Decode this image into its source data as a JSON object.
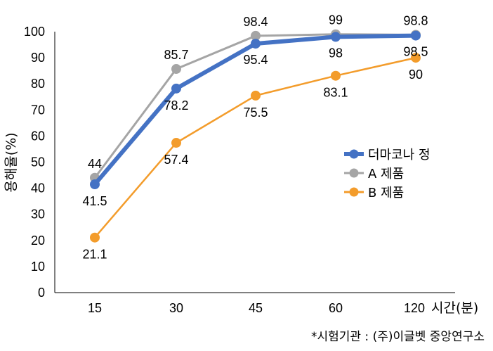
{
  "chart_data": {
    "type": "line",
    "x": [
      15,
      30,
      45,
      60,
      120
    ],
    "categories": [
      "15",
      "30",
      "45",
      "60",
      "120"
    ],
    "x_unit_label": "시간(분)",
    "ylabel": "용해율(%)",
    "ylim": [
      0,
      100
    ],
    "yticks": [
      0,
      10,
      20,
      30,
      40,
      50,
      60,
      70,
      80,
      90,
      100
    ],
    "grid": false,
    "legend_position": "right",
    "series": [
      {
        "name": "더마코나 정",
        "values": [
          41.5,
          78.2,
          95.4,
          98,
          98.5
        ],
        "color": "#4472c4",
        "labels": [
          "41.5",
          "78.2",
          "95.4",
          "98",
          "98.5"
        ],
        "label_pos": [
          "below",
          "below",
          "below",
          "below",
          "below"
        ]
      },
      {
        "name": "A 제품",
        "values": [
          44,
          85.7,
          98.4,
          99,
          98.8
        ],
        "color": "#a5a5a5",
        "labels": [
          "44",
          "85.7",
          "98.4",
          "99",
          "98.8"
        ],
        "label_pos": [
          "above",
          "above",
          "above",
          "above",
          "above"
        ]
      },
      {
        "name": "B 제품",
        "values": [
          21.1,
          57.4,
          75.5,
          83.1,
          90
        ],
        "color": "#f39c2b",
        "labels": [
          "21.1",
          "57.4",
          "75.5",
          "83.1",
          "90"
        ],
        "label_pos": [
          "below",
          "below",
          "below",
          "below",
          "below"
        ]
      }
    ]
  },
  "footnote": "*시험기관 : (주)이글벳 중앙연구소"
}
